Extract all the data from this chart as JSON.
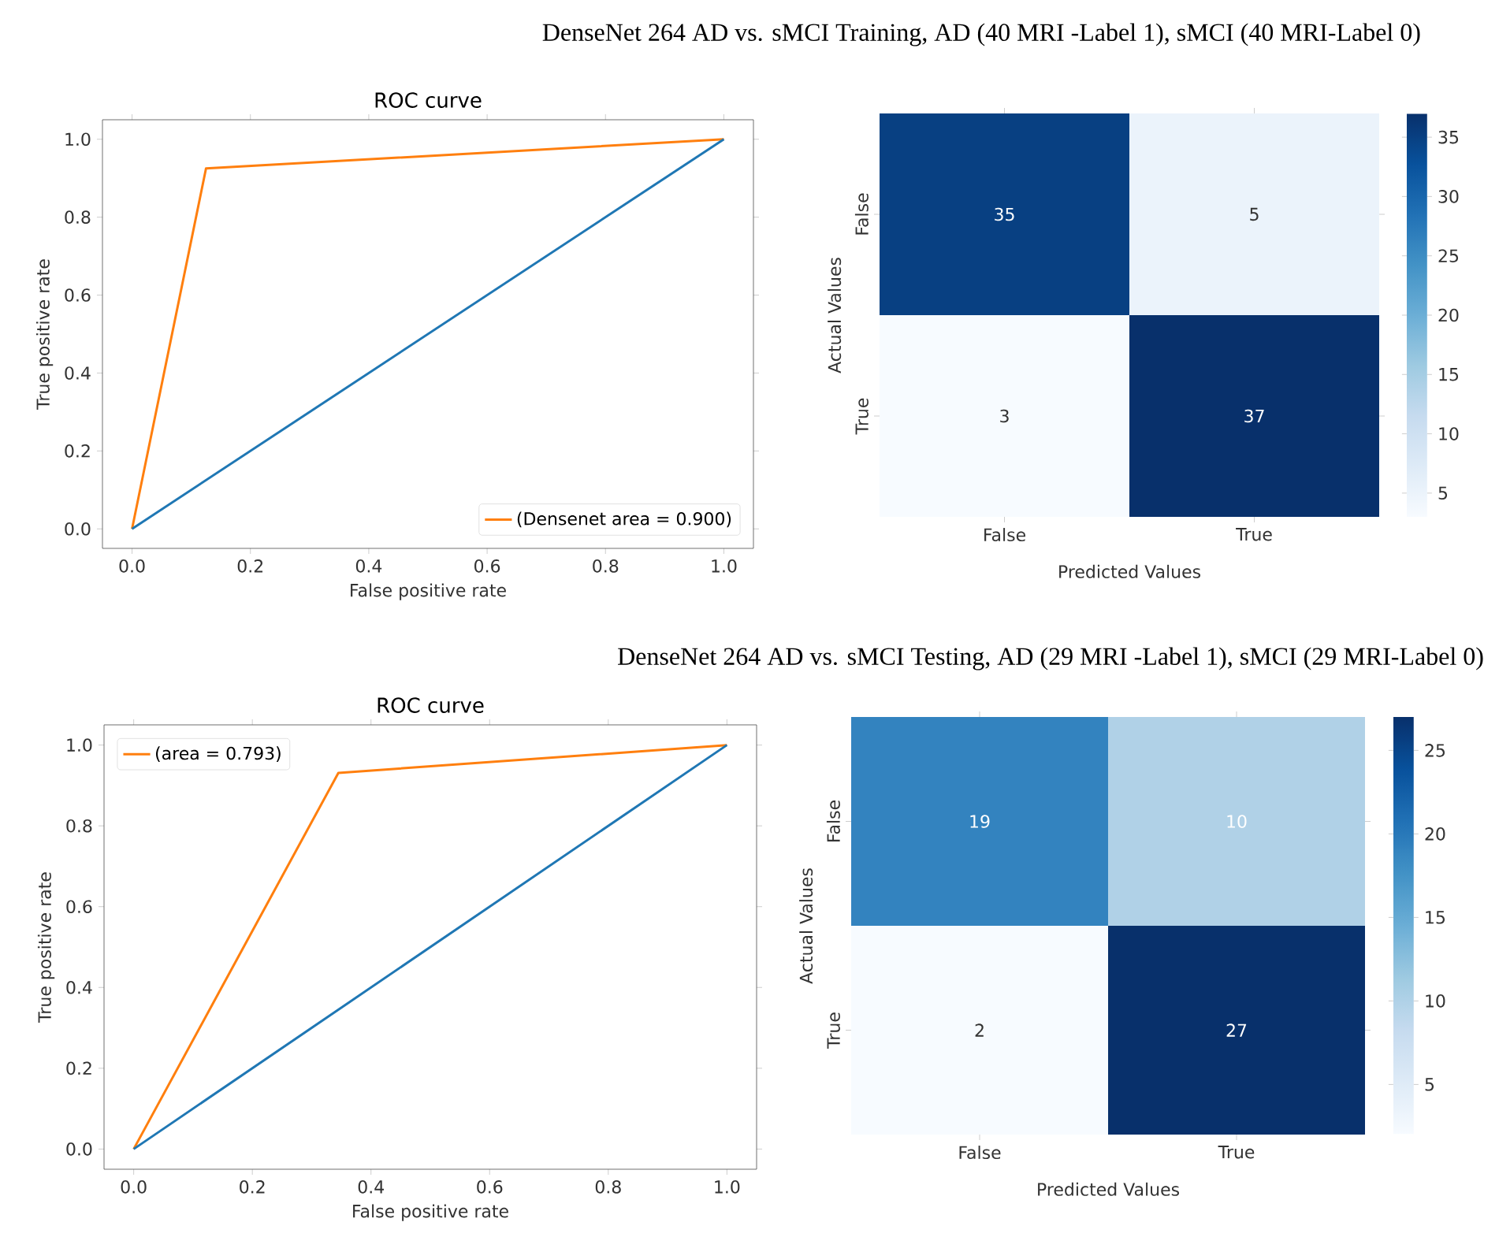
{
  "chart_data": [
    {
      "type": "line",
      "title": "ROC curve",
      "xlabel": "False positive rate",
      "ylabel": "True positive rate",
      "annotations": [
        "DenseNet 264 AD vs. sMCI Training, AD (40 MRI -Label 1), sMCI (40 MRI-Label 0)"
      ],
      "xlim": [
        -0.05,
        1.05
      ],
      "ylim": [
        -0.05,
        1.05
      ],
      "xticks": [
        {
          "value": 0,
          "label": "0.0"
        },
        {
          "value": 0.2,
          "label": "0.2"
        },
        {
          "value": 0.4,
          "label": "0.4"
        },
        {
          "value": 0.6,
          "label": "0.6"
        },
        {
          "value": 0.8,
          "label": "0.8"
        },
        {
          "value": 1,
          "label": "1.0"
        }
      ],
      "yticks": [
        {
          "value": 0,
          "label": "0.0"
        },
        {
          "value": 0.2,
          "label": "0.2"
        },
        {
          "value": 0.4,
          "label": "0.4"
        },
        {
          "value": 0.6,
          "label": "0.6"
        },
        {
          "value": 0.8,
          "label": "0.8"
        },
        {
          "value": 1,
          "label": "1.0"
        }
      ],
      "legend": "bottom right",
      "series": [
        {
          "name": "(Densenet area = 0.900)",
          "color": "#ff7f0e",
          "x": [
            0,
            0.125,
            1
          ],
          "values": [
            0,
            0.925,
            1
          ]
        },
        {
          "color": "#1f77b4",
          "x": [
            0,
            1
          ],
          "values": [
            0,
            1
          ]
        }
      ]
    },
    {
      "type": "heatmap",
      "xlabel": "Predicted Values",
      "ylabel": "Actual Values",
      "categories": [
        "False",
        "True"
      ],
      "y_categories": [
        "False",
        "True"
      ],
      "cells": [
        [
          35,
          5
        ],
        [
          3,
          37
        ]
      ],
      "clim": [
        3,
        37
      ],
      "cticks": [
        5,
        10,
        15,
        20,
        25,
        30,
        35
      ],
      "data_labels": true
    },
    {
      "type": "line",
      "title": "ROC curve",
      "xlabel": "False positive rate",
      "ylabel": "True positive rate",
      "annotations": [
        "DenseNet 264 AD vs. sMCI Testing, AD (29 MRI -Label 1), sMCI (29 MRI-Label 0)"
      ],
      "xlim": [
        -0.05,
        1.05
      ],
      "ylim": [
        -0.05,
        1.05
      ],
      "xticks": [
        {
          "value": 0,
          "label": "0.0"
        },
        {
          "value": 0.2,
          "label": "0.2"
        },
        {
          "value": 0.4,
          "label": "0.4"
        },
        {
          "value": 0.6,
          "label": "0.6"
        },
        {
          "value": 0.8,
          "label": "0.8"
        },
        {
          "value": 1,
          "label": "1.0"
        }
      ],
      "yticks": [
        {
          "value": 0,
          "label": "0.0"
        },
        {
          "value": 0.2,
          "label": "0.2"
        },
        {
          "value": 0.4,
          "label": "0.4"
        },
        {
          "value": 0.6,
          "label": "0.6"
        },
        {
          "value": 0.8,
          "label": "0.8"
        },
        {
          "value": 1,
          "label": "1.0"
        }
      ],
      "legend": "top left",
      "series": [
        {
          "name": "(area = 0.793)",
          "color": "#ff7f0e",
          "x": [
            0,
            0.345,
            1
          ],
          "values": [
            0,
            0.931,
            1
          ]
        },
        {
          "color": "#1f77b4",
          "x": [
            0,
            1
          ],
          "values": [
            0,
            1
          ]
        }
      ]
    },
    {
      "type": "heatmap",
      "xlabel": "Predicted Values",
      "ylabel": "Actual Values",
      "categories": [
        "False",
        "True"
      ],
      "y_categories": [
        "False",
        "True"
      ],
      "cells": [
        [
          19,
          10
        ],
        [
          2,
          27
        ]
      ],
      "clim": [
        2,
        27
      ],
      "cticks": [
        5,
        10,
        15,
        20,
        25
      ],
      "data_labels": true
    }
  ]
}
